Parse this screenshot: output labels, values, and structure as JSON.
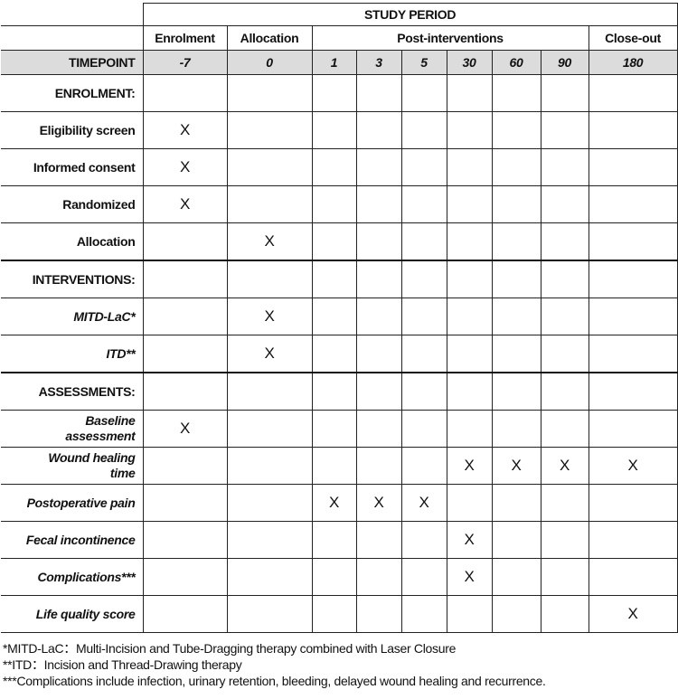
{
  "header": {
    "study_period": "STUDY PERIOD",
    "phases": [
      "Enrolment",
      "Allocation",
      "Post-interventions",
      "Close-out"
    ],
    "timepoint_label": "TIMEPOINT",
    "timepoints": [
      "-7",
      "0",
      "1",
      "3",
      "5",
      "30",
      "60",
      "90",
      "180"
    ]
  },
  "rows": [
    {
      "label": "ENROLMENT:",
      "italic": false,
      "section": true,
      "cells": [
        "",
        "",
        "",
        "",
        "",
        "",
        "",
        "",
        ""
      ]
    },
    {
      "label": "Eligibility screen",
      "italic": false,
      "cells": [
        "X",
        "",
        "",
        "",
        "",
        "",
        "",
        "",
        ""
      ]
    },
    {
      "label": "Informed consent",
      "italic": false,
      "cells": [
        "X",
        "",
        "",
        "",
        "",
        "",
        "",
        "",
        ""
      ]
    },
    {
      "label": "Randomized",
      "italic": false,
      "cells": [
        "X",
        "",
        "",
        "",
        "",
        "",
        "",
        "",
        ""
      ]
    },
    {
      "label": "Allocation",
      "italic": false,
      "cells": [
        "",
        "X",
        "",
        "",
        "",
        "",
        "",
        "",
        ""
      ]
    },
    {
      "label": "INTERVENTIONS:",
      "italic": false,
      "section": true,
      "cells": [
        "",
        "",
        "",
        "",
        "",
        "",
        "",
        "",
        ""
      ]
    },
    {
      "label": "MITD-LaC*",
      "italic": true,
      "cells": [
        "",
        "X",
        "",
        "",
        "",
        "",
        "",
        "",
        ""
      ]
    },
    {
      "label": "ITD**",
      "italic": true,
      "cells": [
        "",
        "X",
        "",
        "",
        "",
        "",
        "",
        "",
        ""
      ]
    },
    {
      "label": "ASSESSMENTS:",
      "italic": false,
      "section": true,
      "cells": [
        "",
        "",
        "",
        "",
        "",
        "",
        "",
        "",
        ""
      ]
    },
    {
      "label": "Baseline assessment",
      "italic": true,
      "cells": [
        "X",
        "",
        "",
        "",
        "",
        "",
        "",
        "",
        ""
      ]
    },
    {
      "label": "Wound healing time",
      "italic": true,
      "cells": [
        "",
        "",
        "",
        "",
        "",
        "X",
        "X",
        "X",
        "X"
      ]
    },
    {
      "label": "Postoperative pain",
      "italic": true,
      "cells": [
        "",
        "",
        "X",
        "X",
        "X",
        "",
        "",
        "",
        ""
      ]
    },
    {
      "label": "Fecal incontinence",
      "italic": true,
      "cells": [
        "",
        "",
        "",
        "",
        "",
        "X",
        "",
        "",
        ""
      ]
    },
    {
      "label": "Complications***",
      "italic": true,
      "cells": [
        "",
        "",
        "",
        "",
        "",
        "X",
        "",
        "",
        ""
      ]
    },
    {
      "label": "Life quality score",
      "italic": true,
      "cells": [
        "",
        "",
        "",
        "",
        "",
        "",
        "",
        "",
        "X"
      ]
    }
  ],
  "footnotes": [
    "*MITD-LaC：Multi-Incision and Tube-Dragging therapy combined with Laser Closure",
    "**ITD：Incision and Thread-Drawing therapy",
    "***Complications include infection, urinary retention, bleeding, delayed wound healing and recurrence."
  ]
}
